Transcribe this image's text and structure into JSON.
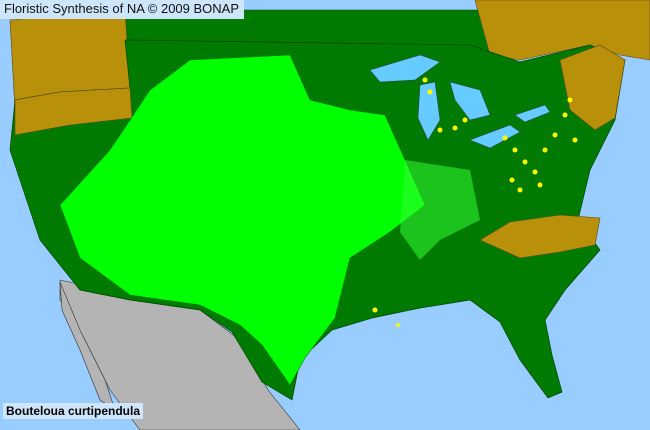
{
  "header": {
    "title": "Floristic Synthesis of NA © 2009 BONAP"
  },
  "map": {
    "species": "Bouteloua curtipendula",
    "colors": {
      "water": "#99ccff",
      "present_native": "#00ff00",
      "species_present_state": "#007a00",
      "not_present_state": "#b8900a",
      "rare_or_extirpated": "#ffff00",
      "outside_region": "#b4b4b4"
    }
  }
}
